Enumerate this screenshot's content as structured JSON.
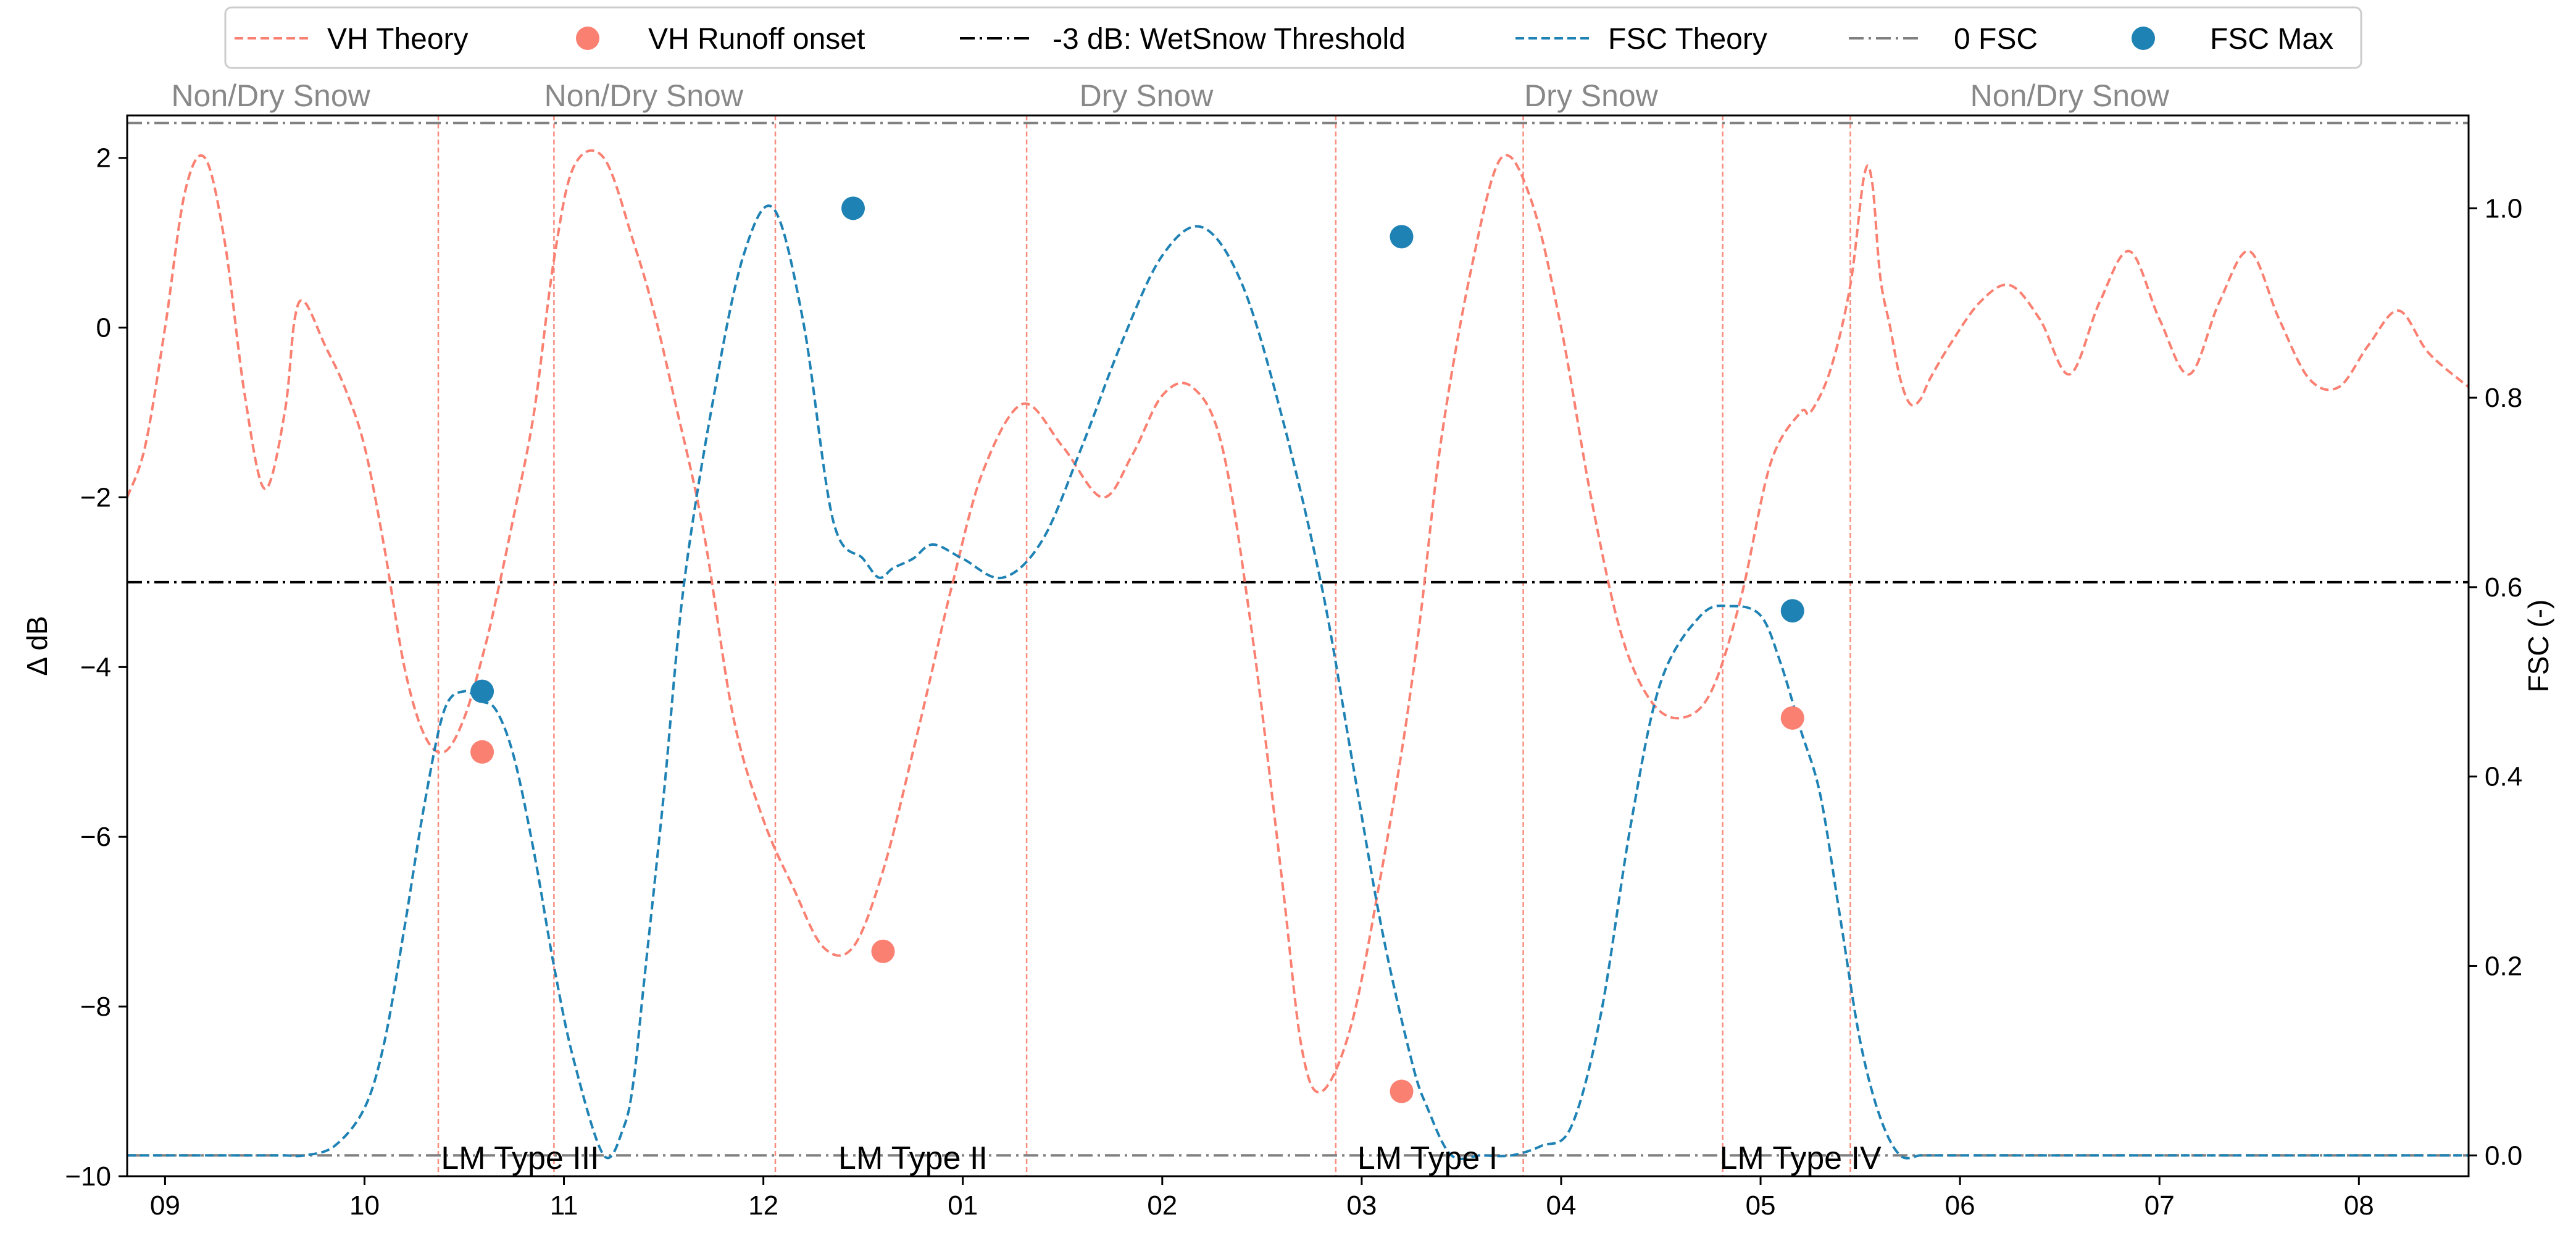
{
  "chart_data": {
    "type": "line",
    "title": "",
    "xlabel": "",
    "ylabel": "Δ dB",
    "y2label": "FSC (-)",
    "xlim": [
      -0.19,
      11.55
    ],
    "ylim": [
      -10.0,
      2.5
    ],
    "y2lim": [
      -0.022,
      1.098
    ],
    "x_tick_labels": [
      "09",
      "10",
      "11",
      "12",
      "01",
      "02",
      "03",
      "04",
      "05",
      "06",
      "07",
      "08"
    ],
    "y_ticks": [
      2,
      0,
      -2,
      -4,
      -6,
      -8,
      -10
    ],
    "y_tick_labels": [
      "2",
      "0",
      "−2",
      "−4",
      "−6",
      "−8",
      "−10"
    ],
    "y2_ticks": [
      1.0,
      0.8,
      0.6,
      0.4,
      0.2,
      0.0
    ],
    "y2_tick_labels": [
      "1.0",
      "0.8",
      "0.6",
      "0.4",
      "0.2",
      "0.0"
    ],
    "colors": {
      "vh": "#fa8072",
      "fsc": "#1f82b4",
      "threshold": "#000000",
      "zero_fsc": "#808080",
      "divider": "#fa8072",
      "season": "#888888"
    },
    "legend": [
      {
        "label": "VH Theory",
        "style": "dashed-line",
        "color": "#fa8072"
      },
      {
        "label": "VH Runoff onset",
        "style": "marker",
        "color": "#fa8072"
      },
      {
        "label": "-3 dB: WetSnow Threshold",
        "style": "dashdot-line",
        "color": "#000000"
      },
      {
        "label": "FSC Theory",
        "style": "dashed-line",
        "color": "#1f82b4"
      },
      {
        "label": "0 FSC",
        "style": "dashdot-line",
        "color": "#808080"
      },
      {
        "label": "FSC Max",
        "style": "marker",
        "color": "#1f82b4"
      }
    ],
    "threshold_db": -3,
    "zero_fsc": 0,
    "top_fsc_reference": 1.09,
    "season_labels": [
      {
        "text": "Non/Dry Snow",
        "x": 0.53
      },
      {
        "text": "Non/Dry Snow",
        "x": 2.4
      },
      {
        "text": "Dry Snow",
        "x": 4.92
      },
      {
        "text": "Dry Snow",
        "x": 7.15
      },
      {
        "text": "Non/Dry Snow",
        "x": 9.55
      }
    ],
    "event_labels": [
      {
        "text": "LM Type III",
        "x": 1.78
      },
      {
        "text": "LM Type II",
        "x": 3.75
      },
      {
        "text": "LM Type I",
        "x": 6.33
      },
      {
        "text": "LM Type IV",
        "x": 8.2
      }
    ],
    "dividers_x": [
      1.37,
      1.95,
      3.06,
      4.32,
      5.87,
      6.81,
      7.81,
      8.45
    ],
    "vh_theory": {
      "x": [
        -0.19,
        -0.1,
        0.0,
        0.1,
        0.2,
        0.3,
        0.4,
        0.5,
        0.6,
        0.65,
        0.7,
        0.8,
        0.9,
        1.0,
        1.1,
        1.2,
        1.3,
        1.4,
        1.5,
        1.6,
        1.66,
        1.75,
        1.85,
        1.95,
        2.05,
        2.2,
        2.35,
        2.45,
        2.55,
        2.7,
        2.85,
        3.0,
        3.15,
        3.3,
        3.45,
        3.6,
        3.75,
        3.85,
        3.95,
        4.1,
        4.3,
        4.5,
        4.7,
        4.85,
        5.0,
        5.15,
        5.3,
        5.45,
        5.6,
        5.7,
        5.8,
        5.95,
        6.1,
        6.2,
        6.25,
        6.3,
        6.4,
        6.55,
        6.7,
        6.85,
        7.0,
        7.15,
        7.3,
        7.45,
        7.6,
        7.75,
        7.9,
        8.05,
        8.2,
        8.25,
        8.35,
        8.45,
        8.52,
        8.56,
        8.6,
        8.65,
        8.7,
        8.75,
        8.8,
        8.85,
        8.95,
        9.1,
        9.25,
        9.4,
        9.55,
        9.7,
        9.85,
        10.0,
        10.15,
        10.3,
        10.45,
        10.6,
        10.75,
        10.9,
        11.05,
        11.2,
        11.35,
        11.55
      ],
      "y": [
        -2.0,
        -1.4,
        0.0,
        1.6,
        2.0,
        1.0,
        -0.8,
        -1.9,
        -1.0,
        0.1,
        0.3,
        -0.2,
        -0.7,
        -1.4,
        -2.6,
        -4.0,
        -4.8,
        -5.0,
        -4.6,
        -3.8,
        -3.2,
        -2.2,
        -1.0,
        0.8,
        1.9,
        2.0,
        1.0,
        0.2,
        -0.8,
        -2.4,
        -4.6,
        -5.8,
        -6.6,
        -7.3,
        -7.3,
        -6.4,
        -5.0,
        -4.0,
        -3.0,
        -1.7,
        -0.9,
        -1.4,
        -2.0,
        -1.5,
        -0.8,
        -0.7,
        -1.4,
        -3.6,
        -6.5,
        -8.5,
        -9.0,
        -8.2,
        -6.4,
        -5.0,
        -4.2,
        -3.3,
        -1.3,
        0.7,
        2.0,
        1.5,
        0.0,
        -2.0,
        -3.6,
        -4.4,
        -4.6,
        -4.3,
        -3.2,
        -1.6,
        -1.0,
        -1.0,
        -0.5,
        0.5,
        1.8,
        1.7,
        0.6,
        0.0,
        -0.6,
        -0.9,
        -0.85,
        -0.6,
        -0.2,
        0.3,
        0.5,
        0.1,
        -0.55,
        0.3,
        0.9,
        0.1,
        -0.55,
        0.3,
        0.9,
        0.1,
        -0.6,
        -0.7,
        -0.2,
        0.2,
        -0.3,
        -0.7
      ]
    },
    "fsc_theory": {
      "x": [
        -0.19,
        0.5,
        0.6,
        0.7,
        0.85,
        1.0,
        1.1,
        1.2,
        1.3,
        1.4,
        1.5,
        1.58,
        1.66,
        1.75,
        1.85,
        1.95,
        2.05,
        2.2,
        2.3,
        2.35,
        2.4,
        2.5,
        2.6,
        2.75,
        2.9,
        3.05,
        3.2,
        3.35,
        3.5,
        3.58,
        3.65,
        3.75,
        3.85,
        4.0,
        4.2,
        4.4,
        4.6,
        4.8,
        5.0,
        5.2,
        5.4,
        5.6,
        5.8,
        5.95,
        6.1,
        6.25,
        6.33,
        6.45,
        6.6,
        6.75,
        6.9,
        7.05,
        7.2,
        7.35,
        7.5,
        7.7,
        7.85,
        8.0,
        8.1,
        8.2,
        8.3,
        8.4,
        8.5,
        8.6,
        8.7,
        8.8,
        8.85,
        8.9,
        9.5,
        10.5,
        11.55
      ],
      "y": [
        0.0,
        0.0,
        0.0,
        0.0,
        0.01,
        0.05,
        0.12,
        0.24,
        0.37,
        0.47,
        0.49,
        0.48,
        0.47,
        0.42,
        0.32,
        0.2,
        0.1,
        0.0,
        0.03,
        0.08,
        0.18,
        0.38,
        0.6,
        0.8,
        0.95,
        1.0,
        0.88,
        0.67,
        0.63,
        0.61,
        0.62,
        0.63,
        0.645,
        0.63,
        0.61,
        0.65,
        0.75,
        0.86,
        0.95,
        0.98,
        0.92,
        0.78,
        0.6,
        0.42,
        0.24,
        0.1,
        0.05,
        0.0,
        0.0,
        0.0,
        0.01,
        0.03,
        0.15,
        0.35,
        0.5,
        0.57,
        0.58,
        0.57,
        0.52,
        0.45,
        0.38,
        0.25,
        0.12,
        0.04,
        0.0,
        0.0,
        0.0,
        0.0,
        0.0,
        0.0,
        0.0
      ]
    },
    "vh_runoff_onset": [
      {
        "x": 1.59,
        "y": -5.0
      },
      {
        "x": 3.6,
        "y": -7.35
      },
      {
        "x": 6.2,
        "y": -9.0
      },
      {
        "x": 8.16,
        "y": -4.6
      }
    ],
    "fsc_max": [
      {
        "x": 1.59,
        "y": 0.49
      },
      {
        "x": 3.45,
        "y": 1.0
      },
      {
        "x": 6.2,
        "y": 0.97
      },
      {
        "x": 8.16,
        "y": 0.575
      }
    ]
  }
}
